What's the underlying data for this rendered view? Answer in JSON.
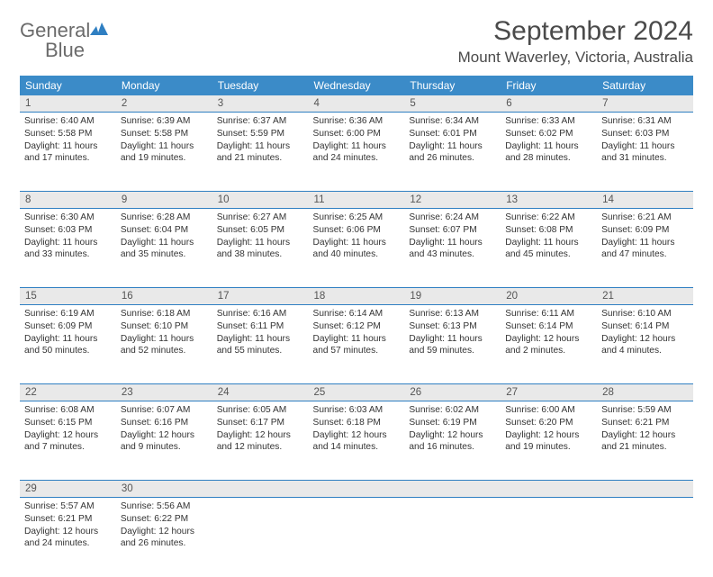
{
  "brand": {
    "line1": "General",
    "line2": "Blue"
  },
  "title": "September 2024",
  "location": "Mount Waverley, Victoria, Australia",
  "colors": {
    "header_bg": "#3b8bc8",
    "header_text": "#ffffff",
    "daynum_bg": "#e9e9e9",
    "border": "#2f7fc2",
    "body_text": "#333333",
    "title_text": "#4a4a4a"
  },
  "fonts": {
    "title_pt": 30,
    "location_pt": 17,
    "header_pt": 12,
    "cell_pt": 10.2
  },
  "day_headers": [
    "Sunday",
    "Monday",
    "Tuesday",
    "Wednesday",
    "Thursday",
    "Friday",
    "Saturday"
  ],
  "weeks": [
    [
      {
        "n": "1",
        "sunrise": "6:40 AM",
        "sunset": "5:58 PM",
        "day_h": "11",
        "day_m": "17"
      },
      {
        "n": "2",
        "sunrise": "6:39 AM",
        "sunset": "5:58 PM",
        "day_h": "11",
        "day_m": "19"
      },
      {
        "n": "3",
        "sunrise": "6:37 AM",
        "sunset": "5:59 PM",
        "day_h": "11",
        "day_m": "21"
      },
      {
        "n": "4",
        "sunrise": "6:36 AM",
        "sunset": "6:00 PM",
        "day_h": "11",
        "day_m": "24"
      },
      {
        "n": "5",
        "sunrise": "6:34 AM",
        "sunset": "6:01 PM",
        "day_h": "11",
        "day_m": "26"
      },
      {
        "n": "6",
        "sunrise": "6:33 AM",
        "sunset": "6:02 PM",
        "day_h": "11",
        "day_m": "28"
      },
      {
        "n": "7",
        "sunrise": "6:31 AM",
        "sunset": "6:03 PM",
        "day_h": "11",
        "day_m": "31"
      }
    ],
    [
      {
        "n": "8",
        "sunrise": "6:30 AM",
        "sunset": "6:03 PM",
        "day_h": "11",
        "day_m": "33"
      },
      {
        "n": "9",
        "sunrise": "6:28 AM",
        "sunset": "6:04 PM",
        "day_h": "11",
        "day_m": "35"
      },
      {
        "n": "10",
        "sunrise": "6:27 AM",
        "sunset": "6:05 PM",
        "day_h": "11",
        "day_m": "38"
      },
      {
        "n": "11",
        "sunrise": "6:25 AM",
        "sunset": "6:06 PM",
        "day_h": "11",
        "day_m": "40"
      },
      {
        "n": "12",
        "sunrise": "6:24 AM",
        "sunset": "6:07 PM",
        "day_h": "11",
        "day_m": "43"
      },
      {
        "n": "13",
        "sunrise": "6:22 AM",
        "sunset": "6:08 PM",
        "day_h": "11",
        "day_m": "45"
      },
      {
        "n": "14",
        "sunrise": "6:21 AM",
        "sunset": "6:09 PM",
        "day_h": "11",
        "day_m": "47"
      }
    ],
    [
      {
        "n": "15",
        "sunrise": "6:19 AM",
        "sunset": "6:09 PM",
        "day_h": "11",
        "day_m": "50"
      },
      {
        "n": "16",
        "sunrise": "6:18 AM",
        "sunset": "6:10 PM",
        "day_h": "11",
        "day_m": "52"
      },
      {
        "n": "17",
        "sunrise": "6:16 AM",
        "sunset": "6:11 PM",
        "day_h": "11",
        "day_m": "55"
      },
      {
        "n": "18",
        "sunrise": "6:14 AM",
        "sunset": "6:12 PM",
        "day_h": "11",
        "day_m": "57"
      },
      {
        "n": "19",
        "sunrise": "6:13 AM",
        "sunset": "6:13 PM",
        "day_h": "11",
        "day_m": "59"
      },
      {
        "n": "20",
        "sunrise": "6:11 AM",
        "sunset": "6:14 PM",
        "day_h": "12",
        "day_m": "2"
      },
      {
        "n": "21",
        "sunrise": "6:10 AM",
        "sunset": "6:14 PM",
        "day_h": "12",
        "day_m": "4"
      }
    ],
    [
      {
        "n": "22",
        "sunrise": "6:08 AM",
        "sunset": "6:15 PM",
        "day_h": "12",
        "day_m": "7"
      },
      {
        "n": "23",
        "sunrise": "6:07 AM",
        "sunset": "6:16 PM",
        "day_h": "12",
        "day_m": "9"
      },
      {
        "n": "24",
        "sunrise": "6:05 AM",
        "sunset": "6:17 PM",
        "day_h": "12",
        "day_m": "12"
      },
      {
        "n": "25",
        "sunrise": "6:03 AM",
        "sunset": "6:18 PM",
        "day_h": "12",
        "day_m": "14"
      },
      {
        "n": "26",
        "sunrise": "6:02 AM",
        "sunset": "6:19 PM",
        "day_h": "12",
        "day_m": "16"
      },
      {
        "n": "27",
        "sunrise": "6:00 AM",
        "sunset": "6:20 PM",
        "day_h": "12",
        "day_m": "19"
      },
      {
        "n": "28",
        "sunrise": "5:59 AM",
        "sunset": "6:21 PM",
        "day_h": "12",
        "day_m": "21"
      }
    ],
    [
      {
        "n": "29",
        "sunrise": "5:57 AM",
        "sunset": "6:21 PM",
        "day_h": "12",
        "day_m": "24"
      },
      {
        "n": "30",
        "sunrise": "5:56 AM",
        "sunset": "6:22 PM",
        "day_h": "12",
        "day_m": "26"
      },
      null,
      null,
      null,
      null,
      null
    ]
  ]
}
